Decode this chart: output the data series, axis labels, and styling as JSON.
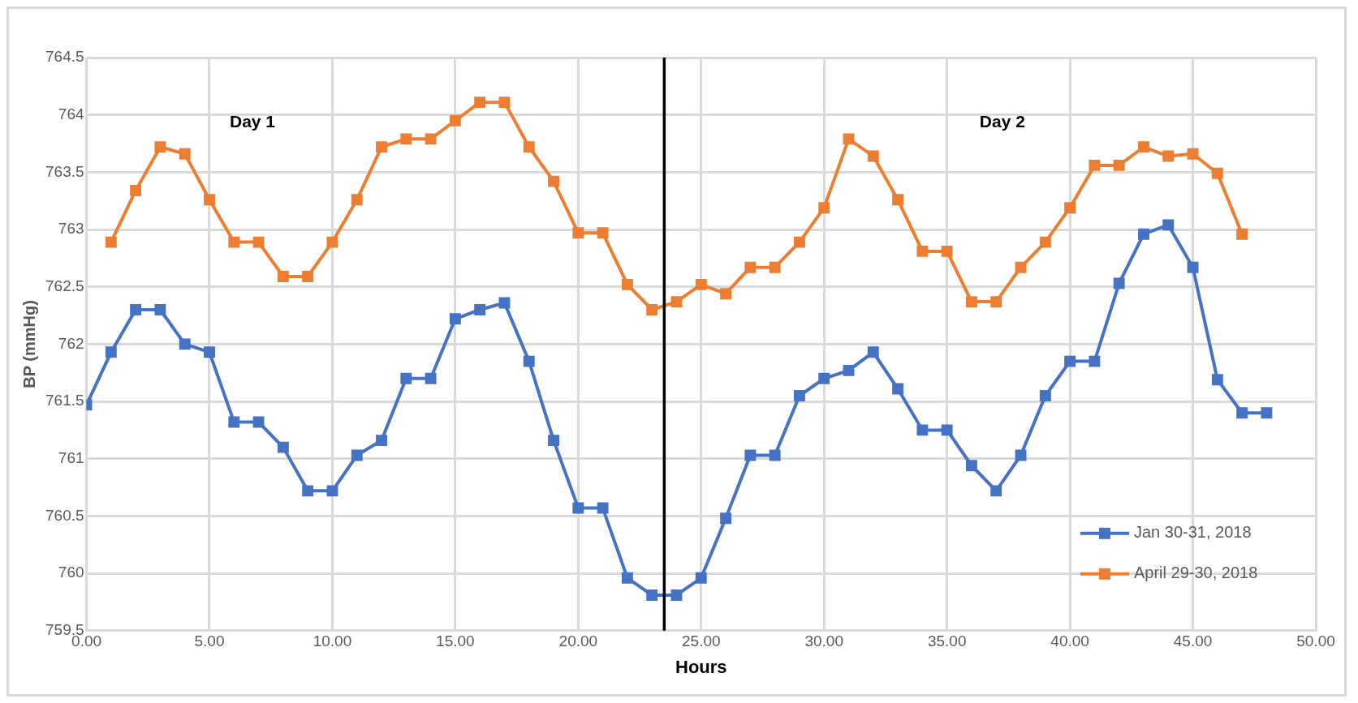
{
  "chart_data": {
    "type": "line",
    "xlabel": "Hours",
    "ylabel": "BP (mmHg)",
    "xlim": [
      0,
      50
    ],
    "xticks": [
      {
        "value": 0,
        "label": "0.00"
      },
      {
        "value": 5,
        "label": "5.00"
      },
      {
        "value": 10,
        "label": "10.00"
      },
      {
        "value": 15,
        "label": "15.00"
      },
      {
        "value": 20,
        "label": "20.00"
      },
      {
        "value": 25,
        "label": "25.00"
      },
      {
        "value": 30,
        "label": "30.00"
      },
      {
        "value": 35,
        "label": "35.00"
      },
      {
        "value": 40,
        "label": "40.00"
      },
      {
        "value": 45,
        "label": "45.00"
      },
      {
        "value": 50,
        "label": "50.00"
      }
    ],
    "ylim": [
      759.5,
      764.5
    ],
    "yticks": [
      759.5,
      760,
      760.5,
      761,
      761.5,
      762,
      762.5,
      763,
      763.5,
      764,
      764.5
    ],
    "grid": true,
    "legend": "bottom right",
    "marker": "square",
    "line_style": "solid",
    "series": [
      {
        "name": "Jan 30-31, 2018",
        "color": "#4472c4",
        "x": [
          0,
          1,
          2,
          3,
          4,
          5,
          6,
          7,
          8,
          9,
          10,
          11,
          12,
          13,
          14,
          15,
          16,
          17,
          18,
          19,
          20,
          21,
          22,
          23,
          24,
          25,
          26,
          27,
          28,
          29,
          30,
          31,
          32,
          33,
          34,
          35,
          36,
          37,
          38,
          39,
          40,
          41,
          42,
          43,
          44,
          45,
          46,
          47,
          48
        ],
        "values": [
          761.47,
          761.93,
          762.3,
          762.3,
          762,
          761.93,
          761.32,
          761.32,
          761.1,
          760.72,
          760.72,
          761.03,
          761.16,
          761.7,
          761.7,
          762.22,
          762.3,
          762.36,
          761.85,
          761.16,
          760.57,
          760.57,
          759.96,
          759.81,
          759.81,
          759.96,
          760.48,
          761.03,
          761.03,
          761.55,
          761.7,
          761.77,
          761.93,
          761.61,
          761.25,
          761.25,
          760.94,
          760.72,
          761.03,
          761.55,
          761.85,
          761.85,
          762.53,
          762.96,
          763.04,
          762.67,
          761.69,
          761.4,
          761.4
        ]
      },
      {
        "name": "April 29-30, 2018",
        "color": "#ed7d31",
        "x": [
          1,
          2,
          3,
          4,
          5,
          6,
          7,
          8,
          9,
          10,
          11,
          12,
          13,
          14,
          15,
          16,
          17,
          18,
          19,
          20,
          21,
          22,
          23,
          24,
          25,
          26,
          27,
          28,
          29,
          30,
          31,
          32,
          33,
          34,
          35,
          36,
          37,
          38,
          39,
          40,
          41,
          42,
          43,
          44,
          45,
          46,
          47
        ],
        "values": [
          762.89,
          763.34,
          763.72,
          763.66,
          763.26,
          762.89,
          762.89,
          762.59,
          762.59,
          762.89,
          763.26,
          763.72,
          763.79,
          763.79,
          763.95,
          764.11,
          764.11,
          763.72,
          763.42,
          762.97,
          762.97,
          762.52,
          762.3,
          762.37,
          762.52,
          762.44,
          762.67,
          762.67,
          762.89,
          763.19,
          763.79,
          763.64,
          763.26,
          762.81,
          762.81,
          762.37,
          762.37,
          762.67,
          762.89,
          763.19,
          763.56,
          763.56,
          763.72,
          763.64,
          763.66,
          763.49,
          762.96
        ]
      }
    ],
    "ref_lines": [
      {
        "axis": "x",
        "value": 23.5,
        "color": "#000000",
        "line_style": "solid"
      }
    ],
    "annotations": [
      "Day 1",
      "Day 2"
    ]
  }
}
